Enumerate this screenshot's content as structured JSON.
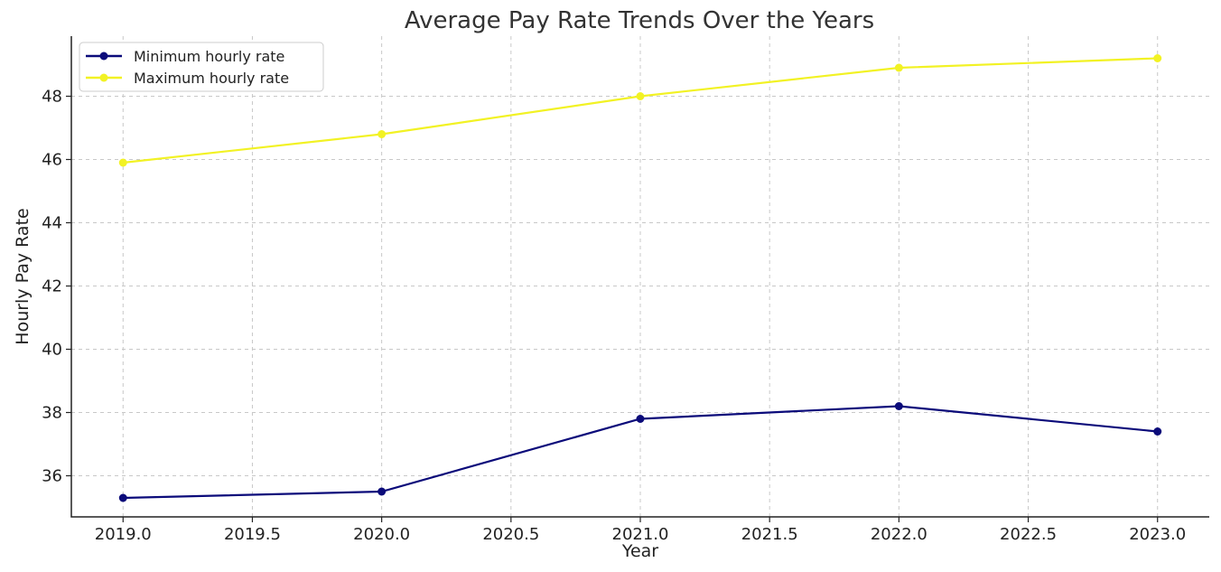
{
  "chart_data": {
    "type": "line",
    "title": "Average Pay Rate Trends Over the Years",
    "xlabel": "Year",
    "ylabel": "Hourly Pay Rate",
    "xlim": [
      2018.8,
      2023.2
    ],
    "ylim": [
      34.7,
      49.9
    ],
    "x_ticks": [
      2019.0,
      2019.5,
      2020.0,
      2020.5,
      2021.0,
      2021.5,
      2022.0,
      2022.5,
      2023.0
    ],
    "x_tick_labels": [
      "2019.0",
      "2019.5",
      "2020.0",
      "2020.5",
      "2021.0",
      "2021.5",
      "2022.0",
      "2022.5",
      "2023.0"
    ],
    "y_ticks": [
      36,
      38,
      40,
      42,
      44,
      46,
      48
    ],
    "y_tick_labels": [
      "36",
      "38",
      "40",
      "42",
      "44",
      "46",
      "48"
    ],
    "grid": true,
    "legend_position": "top-left",
    "x": [
      2019,
      2020,
      2021,
      2022,
      2023
    ],
    "series": [
      {
        "name": "Minimum hourly rate",
        "color": "#0b0b7a",
        "values": [
          35.3,
          35.5,
          37.8,
          38.2,
          37.4
        ]
      },
      {
        "name": "Maximum hourly rate",
        "color": "#f2f224",
        "values": [
          45.9,
          46.8,
          48.0,
          48.9,
          49.2
        ]
      }
    ]
  }
}
